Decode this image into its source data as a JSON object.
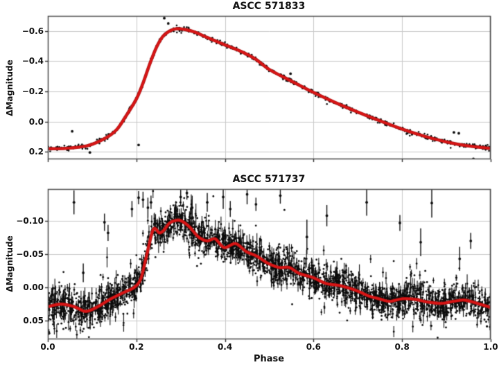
{
  "figure": {
    "background": "#ffffff",
    "grid_color": "#c9c9c9",
    "spine_color": "#4a4a4a",
    "tick_color": "#333333",
    "text_color": "#111111",
    "marker_color": "#0c0c0c",
    "fit_line_color": "#d81616",
    "fit_line_edge_color": "#a90e0e"
  },
  "xlabel": "Phase",
  "chart_data": [
    {
      "type": "scatter",
      "title": "ASCC 571833",
      "ylabel": "ΔMagnitude",
      "xlabel": "",
      "x_range": [
        0.0,
        1.0
      ],
      "ylim_top_to_bottom": [
        -0.7,
        0.25
      ],
      "y_axis_inverted": true,
      "grid": true,
      "legend": "none",
      "y_ticks": [
        -0.6,
        -0.4,
        -0.2,
        0.0,
        0.2
      ],
      "y_tick_labels": [
        "−0.6",
        "−0.4",
        "−0.2",
        "0.0",
        "0.2"
      ],
      "x_ticks": [
        0.0,
        0.2,
        0.4,
        0.6,
        0.8,
        1.0
      ],
      "x_tick_labels": [],
      "show_x_tick_labels": false,
      "fit_curve_points": [
        [
          0.0,
          0.18
        ],
        [
          0.04,
          0.178
        ],
        [
          0.09,
          0.16
        ],
        [
          0.13,
          0.11
        ],
        [
          0.155,
          0.055
        ],
        [
          0.175,
          -0.03
        ],
        [
          0.2,
          -0.15
        ],
        [
          0.215,
          -0.255
        ],
        [
          0.23,
          -0.38
        ],
        [
          0.245,
          -0.49
        ],
        [
          0.26,
          -0.565
        ],
        [
          0.275,
          -0.6
        ],
        [
          0.29,
          -0.615
        ],
        [
          0.31,
          -0.61
        ],
        [
          0.33,
          -0.595
        ],
        [
          0.36,
          -0.557
        ],
        [
          0.4,
          -0.508
        ],
        [
          0.44,
          -0.46
        ],
        [
          0.47,
          -0.412
        ],
        [
          0.5,
          -0.345
        ],
        [
          0.55,
          -0.268
        ],
        [
          0.6,
          -0.193
        ],
        [
          0.65,
          -0.125
        ],
        [
          0.7,
          -0.063
        ],
        [
          0.75,
          -0.005
        ],
        [
          0.8,
          0.05
        ],
        [
          0.85,
          0.097
        ],
        [
          0.9,
          0.135
        ],
        [
          0.95,
          0.162
        ],
        [
          1.0,
          0.178
        ]
      ],
      "scatter": {
        "n_points": 720,
        "noise_sigma": 0.008,
        "tail_prob": 0.03,
        "tail_sigma": 0.018,
        "seed": 42,
        "marker_radius": 1.3,
        "error_bars": false,
        "error_bar_prob": 0.0
      },
      "outliers": [
        [
          0.055,
          0.065,
          0
        ],
        [
          0.095,
          0.205,
          0
        ],
        [
          0.205,
          0.155,
          0
        ],
        [
          0.263,
          -0.685,
          0
        ],
        [
          0.272,
          -0.65,
          0
        ],
        [
          0.512,
          -0.326,
          0
        ],
        [
          0.548,
          -0.317,
          0
        ],
        [
          0.917,
          0.072,
          0
        ],
        [
          0.928,
          0.078,
          0
        ],
        [
          0.961,
          0.247,
          0.006
        ]
      ]
    },
    {
      "type": "scatter",
      "title": "ASCC 571737",
      "ylabel": "ΔMagnitude",
      "xlabel": "Phase",
      "x_range": [
        0.0,
        1.0
      ],
      "ylim_top_to_bottom": [
        -0.148,
        0.078
      ],
      "y_axis_inverted": true,
      "grid": true,
      "legend": "none",
      "y_ticks": [
        -0.1,
        -0.05,
        0.0,
        0.05
      ],
      "y_tick_labels": [
        "−0.10",
        "−0.05",
        "0.00",
        "0.05"
      ],
      "x_ticks": [
        0.0,
        0.2,
        0.4,
        0.6,
        0.8,
        1.0
      ],
      "x_tick_labels": [
        "0.0",
        "0.2",
        "0.4",
        "0.6",
        "0.8",
        "1.0"
      ],
      "show_x_tick_labels": true,
      "fit_curve_points": [
        [
          0.0,
          0.029
        ],
        [
          0.03,
          0.025
        ],
        [
          0.06,
          0.029
        ],
        [
          0.085,
          0.036
        ],
        [
          0.11,
          0.03
        ],
        [
          0.14,
          0.018
        ],
        [
          0.17,
          0.008
        ],
        [
          0.195,
          0.0
        ],
        [
          0.21,
          -0.013
        ],
        [
          0.222,
          -0.045
        ],
        [
          0.238,
          -0.087
        ],
        [
          0.252,
          -0.082
        ],
        [
          0.262,
          -0.086
        ],
        [
          0.275,
          -0.097
        ],
        [
          0.29,
          -0.101
        ],
        [
          0.302,
          -0.1
        ],
        [
          0.32,
          -0.091
        ],
        [
          0.34,
          -0.076
        ],
        [
          0.36,
          -0.07
        ],
        [
          0.378,
          -0.073
        ],
        [
          0.398,
          -0.06
        ],
        [
          0.424,
          -0.066
        ],
        [
          0.448,
          -0.054
        ],
        [
          0.472,
          -0.047
        ],
        [
          0.498,
          -0.036
        ],
        [
          0.522,
          -0.03
        ],
        [
          0.545,
          -0.03
        ],
        [
          0.568,
          -0.021
        ],
        [
          0.598,
          -0.015
        ],
        [
          0.628,
          -0.006
        ],
        [
          0.658,
          -0.003
        ],
        [
          0.685,
          0.002
        ],
        [
          0.705,
          0.007
        ],
        [
          0.725,
          0.013
        ],
        [
          0.748,
          0.017
        ],
        [
          0.772,
          0.021
        ],
        [
          0.8,
          0.017
        ],
        [
          0.83,
          0.018
        ],
        [
          0.858,
          0.022
        ],
        [
          0.888,
          0.024
        ],
        [
          0.915,
          0.021
        ],
        [
          0.94,
          0.019
        ],
        [
          0.965,
          0.023
        ],
        [
          1.0,
          0.03
        ]
      ],
      "scatter": {
        "n_points": 2800,
        "noise_sigma": 0.012,
        "tail_prob": 0.12,
        "tail_sigma": 0.02,
        "seed": 7,
        "marker_radius": 1.4,
        "error_bars": true,
        "error_bar_prob": 0.45
      },
      "outliers": [
        [
          0.059,
          -0.128,
          0.018
        ],
        [
          0.08,
          -0.022,
          0.014
        ],
        [
          0.128,
          -0.098,
          0.013
        ],
        [
          0.136,
          -0.082,
          0.012
        ],
        [
          0.19,
          -0.118,
          0.012
        ],
        [
          0.205,
          -0.135,
          0.01
        ],
        [
          0.215,
          -0.132,
          0.012
        ],
        [
          0.226,
          -0.12,
          0.015
        ],
        [
          0.233,
          -0.128,
          0.01
        ],
        [
          0.3,
          -0.136,
          0.014
        ],
        [
          0.314,
          -0.142,
          0.01
        ],
        [
          0.326,
          -0.12,
          0.018
        ],
        [
          0.36,
          -0.128,
          0.014
        ],
        [
          0.396,
          -0.136,
          0.018
        ],
        [
          0.412,
          -0.118,
          0.012
        ],
        [
          0.45,
          -0.14,
          0.015
        ],
        [
          0.47,
          -0.125,
          0.01
        ],
        [
          0.525,
          -0.138,
          0.012
        ],
        [
          0.585,
          -0.076,
          0.026
        ],
        [
          0.63,
          -0.108,
          0.016
        ],
        [
          0.72,
          -0.128,
          0.02
        ],
        [
          0.795,
          -0.097,
          0.012
        ],
        [
          0.842,
          -0.068,
          0.021
        ],
        [
          0.867,
          -0.127,
          0.022
        ],
        [
          0.93,
          -0.043,
          0.018
        ],
        [
          0.955,
          -0.07,
          0.012
        ]
      ]
    }
  ]
}
